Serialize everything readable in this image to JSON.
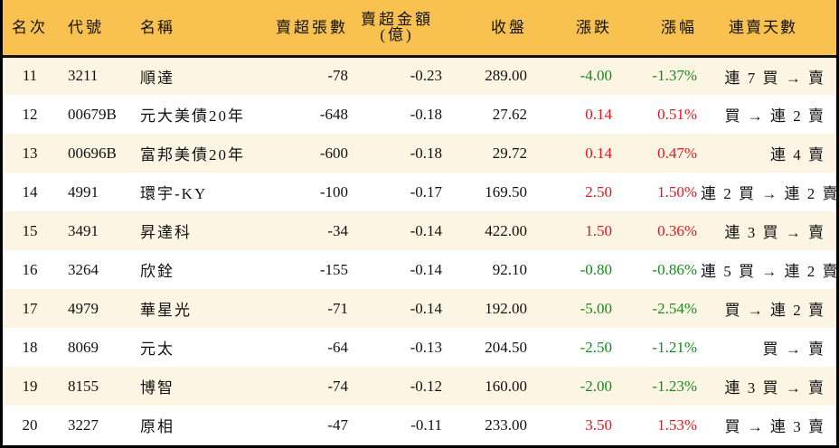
{
  "colors": {
    "header_bg": "#F8C150",
    "row_alt_bg": "#FDF5E3",
    "row_bg": "#FFFFFF",
    "up": "#E8141E",
    "down": "#178A1E"
  },
  "header": {
    "rank": "名次",
    "code": "代號",
    "name": "名稱",
    "net_sell_volume": "賣超張數",
    "net_sell_amount_line1": "賣超金額",
    "net_sell_amount_line2": "(億)",
    "close": "收盤",
    "change": "漲跌",
    "change_pct": "漲幅",
    "streak": "連賣天數"
  },
  "rows": [
    {
      "rank": "11",
      "code": "3211",
      "name": "順達",
      "volume": "-78",
      "amount": "-0.23",
      "close": "289.00",
      "change": "-4.00",
      "pct": "-1.37%",
      "dir": "down",
      "streak": "連 7 買 → 賣"
    },
    {
      "rank": "12",
      "code": "00679B",
      "name": "元大美債20年",
      "volume": "-648",
      "amount": "-0.18",
      "close": "27.62",
      "change": "0.14",
      "pct": "0.51%",
      "dir": "up",
      "streak": "買 → 連 2 賣"
    },
    {
      "rank": "13",
      "code": "00696B",
      "name": "富邦美債20年",
      "volume": "-600",
      "amount": "-0.18",
      "close": "29.72",
      "change": "0.14",
      "pct": "0.47%",
      "dir": "up",
      "streak": "連 4 賣"
    },
    {
      "rank": "14",
      "code": "4991",
      "name": "環宇-KY",
      "volume": "-100",
      "amount": "-0.17",
      "close": "169.50",
      "change": "2.50",
      "pct": "1.50%",
      "dir": "up",
      "streak": "連 2 買 → 連 2 賣"
    },
    {
      "rank": "15",
      "code": "3491",
      "name": "昇達科",
      "volume": "-34",
      "amount": "-0.14",
      "close": "422.00",
      "change": "1.50",
      "pct": "0.36%",
      "dir": "up",
      "streak": "連 3 買 → 賣"
    },
    {
      "rank": "16",
      "code": "3264",
      "name": "欣銓",
      "volume": "-155",
      "amount": "-0.14",
      "close": "92.10",
      "change": "-0.80",
      "pct": "-0.86%",
      "dir": "down",
      "streak": "連 5 買 → 連 2 賣"
    },
    {
      "rank": "17",
      "code": "4979",
      "name": "華星光",
      "volume": "-71",
      "amount": "-0.14",
      "close": "192.00",
      "change": "-5.00",
      "pct": "-2.54%",
      "dir": "down",
      "streak": "買 → 連 2 賣"
    },
    {
      "rank": "18",
      "code": "8069",
      "name": "元太",
      "volume": "-64",
      "amount": "-0.13",
      "close": "204.50",
      "change": "-2.50",
      "pct": "-1.21%",
      "dir": "down",
      "streak": "買 → 賣"
    },
    {
      "rank": "19",
      "code": "8155",
      "name": "博智",
      "volume": "-74",
      "amount": "-0.12",
      "close": "160.00",
      "change": "-2.00",
      "pct": "-1.23%",
      "dir": "down",
      "streak": "連 3 買 → 賣"
    },
    {
      "rank": "20",
      "code": "3227",
      "name": "原相",
      "volume": "-47",
      "amount": "-0.11",
      "close": "233.00",
      "change": "3.50",
      "pct": "1.53%",
      "dir": "up",
      "streak": "買 → 連 3 賣"
    }
  ]
}
